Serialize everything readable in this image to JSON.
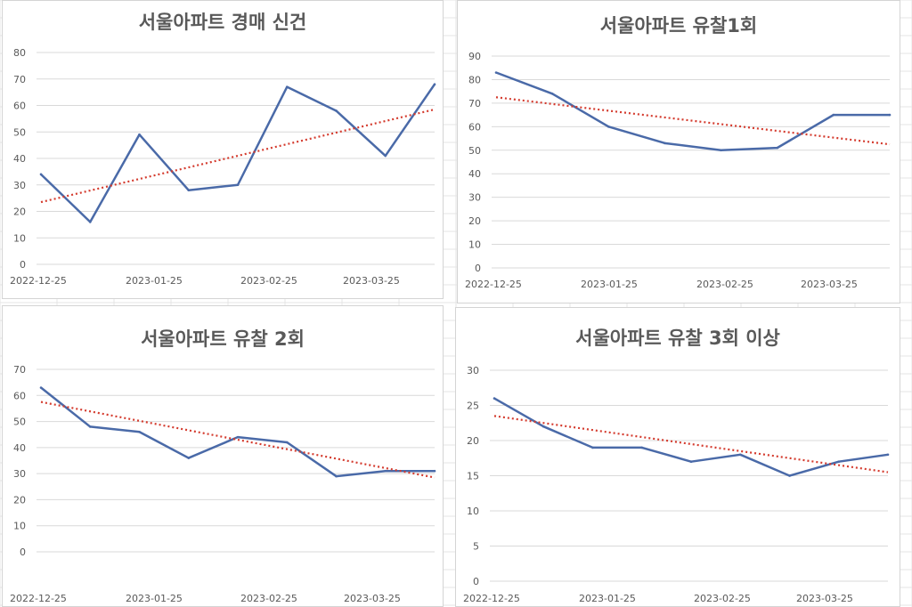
{
  "colors": {
    "series": "#4a6aa8",
    "trend": "#d43b2e",
    "gridline": "#d9d9d9",
    "text": "#595959",
    "background_grid": "#e4e4e4"
  },
  "chart_data": [
    {
      "type": "line",
      "title": "서울아파트 경매 신건",
      "xticks": [
        "2022-12-25",
        "2023-01-25",
        "2023-02-25",
        "2023-03-25"
      ],
      "yticks": [
        "0",
        "10",
        "20",
        "30",
        "40",
        "50",
        "60",
        "70",
        "80"
      ],
      "ylim": [
        0,
        80
      ],
      "series": [
        {
          "values": [
            34,
            16,
            49,
            28,
            30,
            67,
            58,
            41,
            68
          ]
        }
      ],
      "trendline": {
        "start": 23.5,
        "end": 58.5
      }
    },
    {
      "type": "line",
      "title": "서울아파트 유찰1회",
      "xticks": [
        "2022-12-25",
        "2023-01-25",
        "2023-02-25",
        "2023-03-25"
      ],
      "yticks": [
        "0",
        "10",
        "20",
        "30",
        "40",
        "50",
        "60",
        "70",
        "80",
        "90"
      ],
      "ylim": [
        0,
        90
      ],
      "series": [
        {
          "values": [
            83,
            74,
            60,
            53,
            50,
            51,
            65,
            65
          ]
        }
      ],
      "trendline": {
        "start": 72.5,
        "end": 52.5
      }
    },
    {
      "type": "line",
      "title": "서울아파트 유찰 2회",
      "xticks": [
        "2022-12-25",
        "2023-01-25",
        "2023-02-25",
        "2023-03-25"
      ],
      "yticks": [
        "0",
        "10",
        "20",
        "30",
        "40",
        "50",
        "60",
        "70"
      ],
      "ylim": [
        0,
        70
      ],
      "series": [
        {
          "values": [
            63,
            48,
            46,
            36,
            44,
            42,
            29,
            31,
            31
          ]
        }
      ],
      "trendline": {
        "start": 57.5,
        "end": 28.5
      }
    },
    {
      "type": "line",
      "title": "서울아파트 유찰 3회 이상",
      "xticks": [
        "2022-12-25",
        "2023-01-25",
        "2023-02-25",
        "2023-03-25"
      ],
      "yticks": [
        "0",
        "5",
        "10",
        "15",
        "20",
        "25",
        "30"
      ],
      "ylim": [
        0,
        30
      ],
      "series": [
        {
          "values": [
            26,
            22,
            19,
            19,
            17,
            18,
            15,
            17,
            18
          ]
        }
      ],
      "trendline": {
        "start": 23.5,
        "end": 15.5
      }
    }
  ]
}
